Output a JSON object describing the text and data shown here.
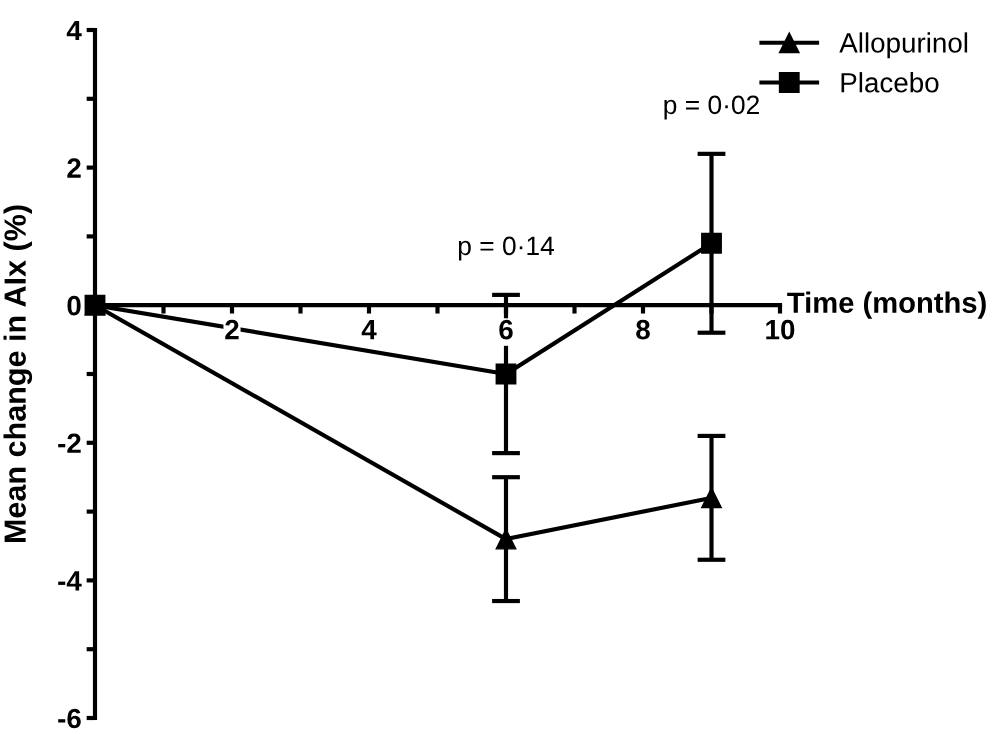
{
  "chart_data": {
    "type": "line",
    "xlabel": "Time (months)",
    "ylabel": "Mean change in AIx (%)",
    "x": [
      0,
      6,
      9
    ],
    "series": [
      {
        "name": "Allopurinol",
        "color": "#000000",
        "marker": "triangle",
        "values": [
          0,
          -3.4,
          -2.8
        ],
        "errors": [
          null,
          0.9,
          0.9
        ]
      },
      {
        "name": "Placebo",
        "color": "#000000",
        "marker": "square",
        "values": [
          0,
          -1.0,
          0.9
        ],
        "errors": [
          null,
          1.15,
          1.3
        ]
      }
    ],
    "xlim": [
      0,
      10
    ],
    "ylim": [
      -6,
      4
    ],
    "xticks": [
      {
        "value": 1,
        "label": null
      },
      2,
      {
        "value": 3,
        "label": null
      },
      4,
      {
        "value": 5,
        "label": null
      },
      6,
      {
        "value": 7,
        "label": null
      },
      8,
      {
        "value": 9,
        "label": null
      },
      10
    ],
    "yticks": [
      -6,
      {
        "value": -5,
        "label": null
      },
      -4,
      {
        "value": -3,
        "label": null
      },
      -2,
      {
        "value": -1,
        "label": null
      },
      0,
      {
        "value": 1,
        "label": null
      },
      2,
      {
        "value": 3,
        "label": null
      },
      4
    ],
    "annotations": [
      "p = 0·14",
      "p = 0·02"
    ],
    "legend": "top right",
    "line_style": "solid",
    "grid": false
  }
}
